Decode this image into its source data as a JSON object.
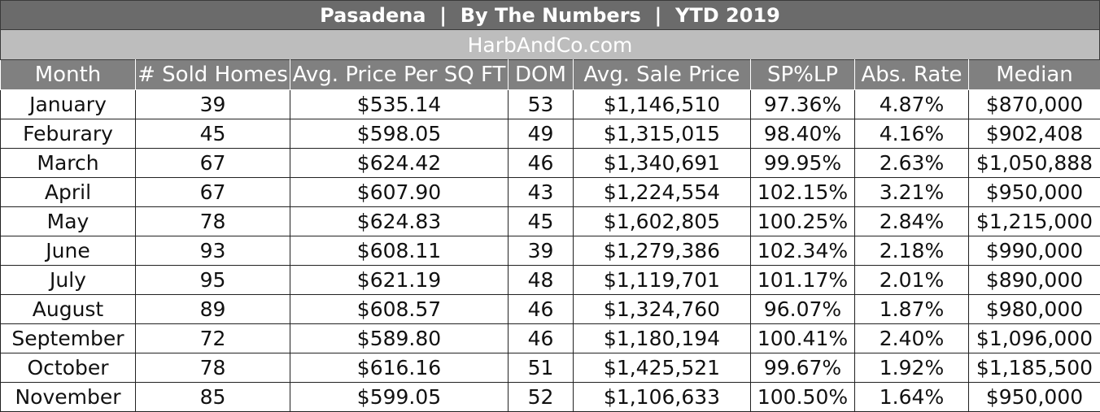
{
  "title": "Pasadena  |  By The Numbers  |  YTD 2019",
  "subtitle": "HarbAndCo.com",
  "columns": [
    "Month",
    "# Sold Homes",
    "Avg. Price Per SQ FT",
    "DOM",
    "Avg. Sale Price",
    "SP%LP",
    "Abs. Rate",
    "Median"
  ],
  "rows": [
    [
      "January",
      "39",
      "$535.14",
      "53",
      "$1,146,510",
      "97.36%",
      "4.87%",
      "$870,000"
    ],
    [
      "Feburary",
      "45",
      "$598.05",
      "49",
      "$1,315,015",
      "98.40%",
      "4.16%",
      "$902,408"
    ],
    [
      "March",
      "67",
      "$624.42",
      "46",
      "$1,340,691",
      "99.95%",
      "2.63%",
      "$1,050,888"
    ],
    [
      "April",
      "67",
      "$607.90",
      "43",
      "$1,224,554",
      "102.15%",
      "3.21%",
      "$950,000"
    ],
    [
      "May",
      "78",
      "$624.83",
      "45",
      "$1,602,805",
      "100.25%",
      "2.84%",
      "$1,215,000"
    ],
    [
      "June",
      "93",
      "$608.11",
      "39",
      "$1,279,386",
      "102.34%",
      "2.18%",
      "$990,000"
    ],
    [
      "July",
      "95",
      "$621.19",
      "48",
      "$1,119,701",
      "101.17%",
      "2.01%",
      "$890,000"
    ],
    [
      "August",
      "89",
      "$608.57",
      "46",
      "$1,324,760",
      "96.07%",
      "1.87%",
      "$980,000"
    ],
    [
      "September",
      "72",
      "$589.80",
      "46",
      "$1,180,194",
      "100.41%",
      "2.40%",
      "$1,096,000"
    ],
    [
      "October",
      "78",
      "$616.16",
      "51",
      "$1,425,521",
      "99.67%",
      "1.92%",
      "$1,185,500"
    ],
    [
      "November",
      "85",
      "$599.05",
      "52",
      "$1,106,633",
      "100.50%",
      "1.64%",
      "$950,000"
    ]
  ]
}
